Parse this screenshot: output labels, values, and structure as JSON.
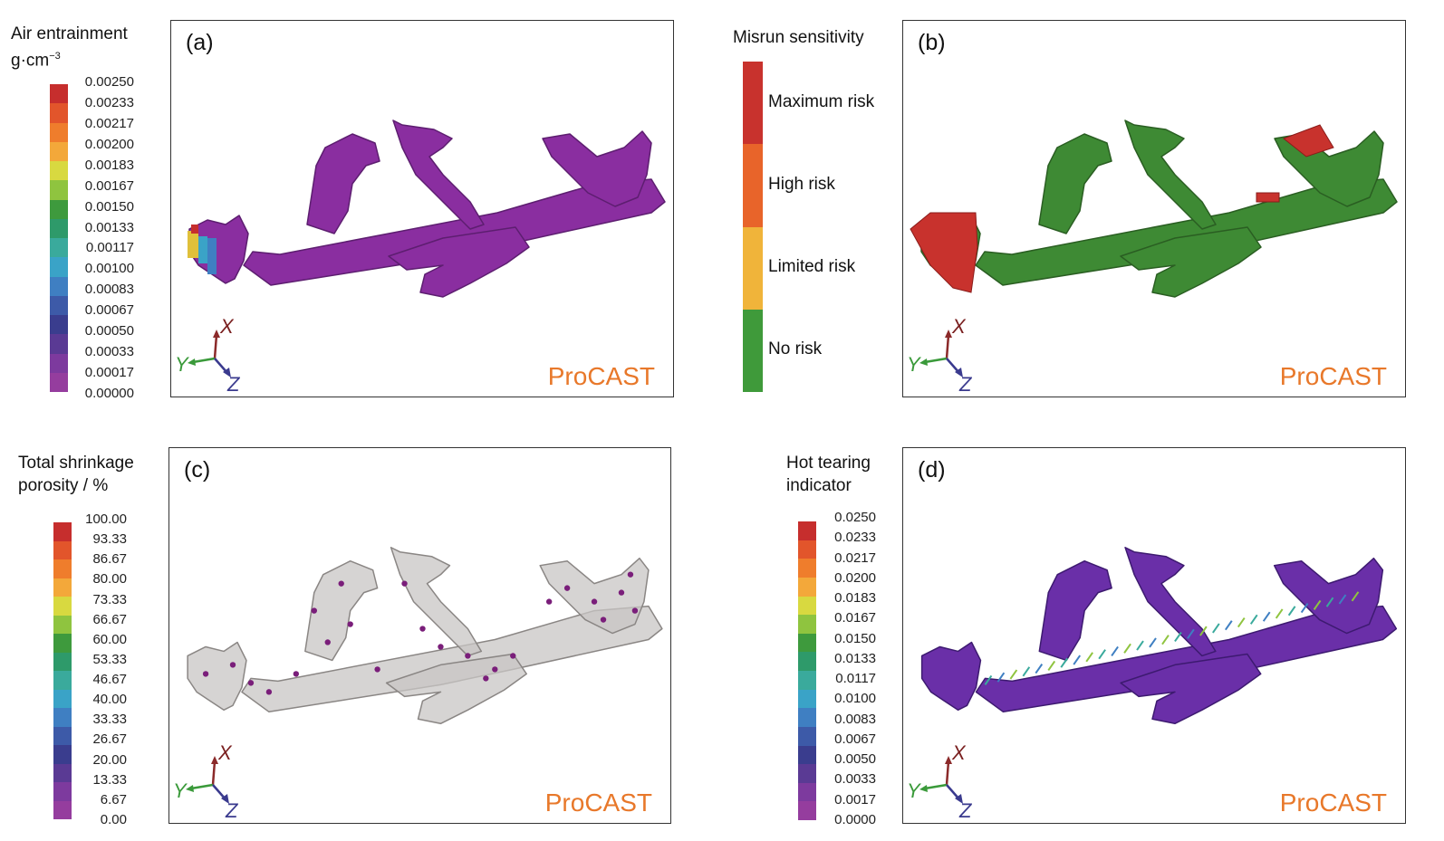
{
  "panels": {
    "a": {
      "label": "(a)",
      "brand": "ProCAST",
      "legend_title_line1": "Air entrainment",
      "legend_title_line2_base": "g·cm",
      "legend_title_line2_exp": "−3",
      "ticks": [
        "0.00250",
        "0.00233",
        "0.00217",
        "0.00200",
        "0.00183",
        "0.00167",
        "0.00150",
        "0.00133",
        "0.00117",
        "0.00100",
        "0.00083",
        "0.00067",
        "0.00050",
        "0.00033",
        "0.00017",
        "0.00000"
      ],
      "model_color": "#8a2ea0"
    },
    "b": {
      "label": "(b)",
      "brand": "ProCAST",
      "legend_title": "Misrun sensitivity",
      "levels": [
        {
          "name": "Maximum risk",
          "color": "#c8322d"
        },
        {
          "name": "High risk",
          "color": "#e8642a"
        },
        {
          "name": "Limited risk",
          "color": "#f0b43a"
        },
        {
          "name": "No risk",
          "color": "#3f9a3a"
        }
      ],
      "model_color": "#3e8a34"
    },
    "c": {
      "label": "(c)",
      "brand": "ProCAST",
      "legend_title_line1": "Total shrinkage",
      "legend_title_line2": "porosity / %",
      "ticks": [
        "100.00",
        "93.33",
        "86.67",
        "80.00",
        "73.33",
        "66.67",
        "60.00",
        "53.33",
        "46.67",
        "40.00",
        "33.33",
        "26.67",
        "20.00",
        "13.33",
        "6.67",
        "0.00"
      ],
      "model_color": "#c8c6c4"
    },
    "d": {
      "label": "(d)",
      "brand": "ProCAST",
      "legend_title_line1": "Hot tearing",
      "legend_title_line2": "indicator",
      "ticks": [
        "0.0250",
        "0.0233",
        "0.0217",
        "0.0200",
        "0.0183",
        "0.0167",
        "0.0150",
        "0.0133",
        "0.0117",
        "0.0100",
        "0.0083",
        "0.0067",
        "0.0050",
        "0.0033",
        "0.0017",
        "0.0000"
      ],
      "model_color": "#6a2fa8"
    }
  },
  "axes_labels": {
    "x": "X",
    "y": "Y",
    "z": "Z"
  },
  "colormap": [
    "#c62e2d",
    "#e2552b",
    "#ef7d2c",
    "#f3a83a",
    "#d8d940",
    "#8fc43f",
    "#3e9a3d",
    "#2e9a6a",
    "#3aaa9c",
    "#3aa3c7",
    "#3f7fc2",
    "#3d5aa8",
    "#3a3d8e",
    "#5a3a94",
    "#7d3a9e",
    "#953d9e"
  ]
}
